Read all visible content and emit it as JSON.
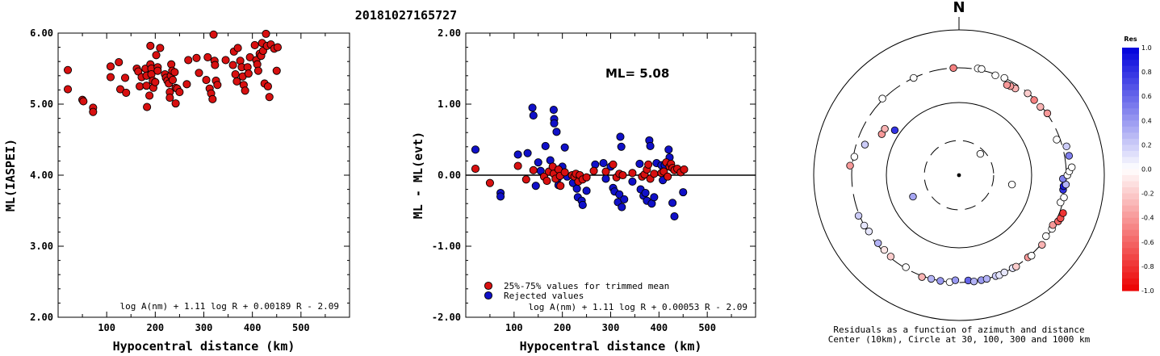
{
  "title": "20181027165727",
  "chart_data": [
    {
      "type": "scatter",
      "panel": "ml-vs-distance",
      "xlabel": "Hypocentral distance (km)",
      "ylabel": "ML(IASPEI)",
      "xlim": [
        0,
        600
      ],
      "ylim": [
        2.0,
        6.0
      ],
      "xticks": [
        "100",
        "200",
        "300",
        "400",
        "500"
      ],
      "yticks": [
        "2.00",
        "3.00",
        "4.00",
        "5.00",
        "6.00"
      ],
      "formula": "log A(nm) + 1.11 log R + 0.00189 R - 2.09",
      "color": "#d81010",
      "points": [
        [
          20,
          5.48
        ],
        [
          20,
          5.21
        ],
        [
          50,
          5.06
        ],
        [
          52,
          5.04
        ],
        [
          72,
          4.95
        ],
        [
          72,
          4.89
        ],
        [
          108,
          5.53
        ],
        [
          108,
          5.38
        ],
        [
          125,
          5.59
        ],
        [
          128,
          5.21
        ],
        [
          138,
          5.37
        ],
        [
          140,
          5.16
        ],
        [
          162,
          5.5
        ],
        [
          165,
          5.46
        ],
        [
          168,
          5.25
        ],
        [
          172,
          5.38
        ],
        [
          180,
          5.5
        ],
        [
          182,
          5.4
        ],
        [
          182,
          5.26
        ],
        [
          183,
          4.96
        ],
        [
          188,
          5.12
        ],
        [
          190,
          5.82
        ],
        [
          190,
          5.56
        ],
        [
          192,
          5.5
        ],
        [
          192,
          5.42
        ],
        [
          195,
          5.33
        ],
        [
          196,
          5.23
        ],
        [
          200,
          5.31
        ],
        [
          202,
          5.69
        ],
        [
          205,
          5.52
        ],
        [
          205,
          5.47
        ],
        [
          210,
          5.79
        ],
        [
          220,
          5.42
        ],
        [
          222,
          5.37
        ],
        [
          225,
          5.33
        ],
        [
          228,
          5.29
        ],
        [
          230,
          5.17
        ],
        [
          230,
          5.09
        ],
        [
          232,
          5.4
        ],
        [
          233,
          5.56
        ],
        [
          235,
          5.47
        ],
        [
          236,
          5.34
        ],
        [
          240,
          5.45
        ],
        [
          242,
          5.23
        ],
        [
          242,
          5.01
        ],
        [
          245,
          5.22
        ],
        [
          250,
          5.17
        ],
        [
          265,
          5.28
        ],
        [
          268,
          5.62
        ],
        [
          285,
          5.65
        ],
        [
          290,
          5.44
        ],
        [
          305,
          5.34
        ],
        [
          308,
          5.66
        ],
        [
          312,
          5.22
        ],
        [
          315,
          5.15
        ],
        [
          318,
          5.07
        ],
        [
          320,
          5.98
        ],
        [
          322,
          5.61
        ],
        [
          323,
          5.55
        ],
        [
          325,
          5.33
        ],
        [
          328,
          5.27
        ],
        [
          345,
          5.62
        ],
        [
          360,
          5.55
        ],
        [
          362,
          5.74
        ],
        [
          365,
          5.42
        ],
        [
          368,
          5.32
        ],
        [
          370,
          5.79
        ],
        [
          375,
          5.61
        ],
        [
          378,
          5.52
        ],
        [
          380,
          5.39
        ],
        [
          382,
          5.27
        ],
        [
          385,
          5.19
        ],
        [
          390,
          5.52
        ],
        [
          392,
          5.43
        ],
        [
          395,
          5.66
        ],
        [
          405,
          5.83
        ],
        [
          408,
          5.62
        ],
        [
          410,
          5.56
        ],
        [
          412,
          5.47
        ],
        [
          415,
          5.71
        ],
        [
          418,
          5.68
        ],
        [
          420,
          5.86
        ],
        [
          422,
          5.75
        ],
        [
          425,
          5.29
        ],
        [
          428,
          5.99
        ],
        [
          430,
          5.82
        ],
        [
          432,
          5.25
        ],
        [
          435,
          5.1
        ],
        [
          438,
          5.84
        ],
        [
          445,
          5.78
        ],
        [
          450,
          5.47
        ],
        [
          452,
          5.8
        ]
      ]
    },
    {
      "type": "scatter",
      "panel": "residual-vs-distance",
      "xlabel": "Hypocentral distance (km)",
      "ylabel": "ML - ML(evt)",
      "xlim": [
        0,
        600
      ],
      "ylim": [
        -2.0,
        2.0
      ],
      "xticks": [
        "100",
        "200",
        "300",
        "400",
        "500"
      ],
      "yticks": [
        "-2.00",
        "-1.00",
        "0.00",
        "1.00",
        "2.00"
      ],
      "ml_label": "ML=  5.08",
      "formula": "log A(nm) + 1.11 log R + 0.00053 R - 2.09",
      "legend": [
        {
          "label": "25%-75% values for trimmed mean",
          "color": "#d81010"
        },
        {
          "label": "Rejected values",
          "color": "#1010c8"
        }
      ],
      "series": [
        {
          "name": "25%-75% values for trimmed mean",
          "color": "#d81010",
          "points": [
            [
              20,
              0.09
            ],
            [
              50,
              -0.11
            ],
            [
              108,
              0.13
            ],
            [
              125,
              -0.06
            ],
            [
              140,
              0.07
            ],
            [
              162,
              -0.02
            ],
            [
              168,
              -0.08
            ],
            [
              172,
              0.05
            ],
            [
              180,
              0.12
            ],
            [
              182,
              0.02
            ],
            [
              186,
              -0.05
            ],
            [
              192,
              0.08
            ],
            [
              195,
              -0.01
            ],
            [
              196,
              -0.15
            ],
            [
              205,
              0.04
            ],
            [
              220,
              0.0
            ],
            [
              225,
              -0.02
            ],
            [
              228,
              0.02
            ],
            [
              233,
              -0.09
            ],
            [
              236,
              0.0
            ],
            [
              242,
              -0.06
            ],
            [
              250,
              -0.03
            ],
            [
              265,
              0.06
            ],
            [
              290,
              0.05
            ],
            [
              305,
              0.15
            ],
            [
              312,
              -0.03
            ],
            [
              318,
              0.02
            ],
            [
              325,
              0.0
            ],
            [
              345,
              0.03
            ],
            [
              365,
              -0.02
            ],
            [
              370,
              0.01
            ],
            [
              375,
              0.08
            ],
            [
              378,
              0.15
            ],
            [
              382,
              -0.05
            ],
            [
              390,
              0.02
            ],
            [
              405,
              0.03
            ],
            [
              410,
              0.05
            ],
            [
              415,
              0.18
            ],
            [
              418,
              -0.02
            ],
            [
              422,
              0.12
            ],
            [
              425,
              0.16
            ],
            [
              428,
              0.1
            ],
            [
              432,
              0.07
            ],
            [
              438,
              0.09
            ],
            [
              445,
              0.04
            ],
            [
              452,
              0.08
            ]
          ]
        },
        {
          "name": "Rejected values",
          "color": "#1010c8",
          "points": [
            [
              20,
              0.36
            ],
            [
              72,
              -0.25
            ],
            [
              72,
              -0.3
            ],
            [
              108,
              0.29
            ],
            [
              128,
              0.31
            ],
            [
              138,
              0.95
            ],
            [
              140,
              0.84
            ],
            [
              145,
              -0.15
            ],
            [
              150,
              0.18
            ],
            [
              155,
              0.06
            ],
            [
              165,
              0.41
            ],
            [
              175,
              0.21
            ],
            [
              178,
              0.05
            ],
            [
              182,
              0.92
            ],
            [
              183,
              0.79
            ],
            [
              183,
              0.73
            ],
            [
              188,
              0.61
            ],
            [
              190,
              -0.05
            ],
            [
              192,
              -0.14
            ],
            [
              200,
              0.12
            ],
            [
              205,
              0.39
            ],
            [
              210,
              -0.02
            ],
            [
              222,
              -0.11
            ],
            [
              230,
              -0.19
            ],
            [
              232,
              -0.31
            ],
            [
              240,
              -0.36
            ],
            [
              242,
              -0.42
            ],
            [
              250,
              -0.22
            ],
            [
              268,
              0.15
            ],
            [
              285,
              0.17
            ],
            [
              290,
              -0.05
            ],
            [
              300,
              0.12
            ],
            [
              305,
              -0.18
            ],
            [
              308,
              -0.23
            ],
            [
              315,
              -0.38
            ],
            [
              318,
              -0.27
            ],
            [
              320,
              0.54
            ],
            [
              322,
              0.4
            ],
            [
              323,
              -0.45
            ],
            [
              328,
              -0.34
            ],
            [
              345,
              -0.09
            ],
            [
              360,
              0.16
            ],
            [
              362,
              -0.2
            ],
            [
              368,
              -0.29
            ],
            [
              372,
              -0.25
            ],
            [
              375,
              -0.36
            ],
            [
              380,
              0.49
            ],
            [
              382,
              0.41
            ],
            [
              385,
              -0.4
            ],
            [
              390,
              -0.31
            ],
            [
              395,
              0.17
            ],
            [
              405,
              0.14
            ],
            [
              408,
              -0.07
            ],
            [
              412,
              0.14
            ],
            [
              420,
              0.36
            ],
            [
              422,
              0.25
            ],
            [
              428,
              -0.39
            ],
            [
              432,
              -0.58
            ],
            [
              450,
              -0.24
            ]
          ]
        }
      ]
    },
    {
      "type": "polar-scatter",
      "panel": "azimuth-distance-residuals",
      "north_label": "N",
      "caption_line1": "Residuals as a function of azimuth and distance",
      "caption_line2": "Center (10km), Circle at 30, 100, 300 and 1000 km",
      "rings_km": [
        30,
        100,
        300,
        1000
      ],
      "colorbar": {
        "title": "Res",
        "ticks": [
          "1.0",
          "0.8",
          "0.6",
          "0.4",
          "0.2",
          "0.0",
          "-0.2",
          "-0.4",
          "-0.6",
          "-0.8",
          "-1.0"
        ],
        "min": -1.0,
        "max": 1.0
      },
      "points_note": "[azimuth_deg, distance_km, residual]",
      "points": [
        [
          45,
          26,
          0.0
        ],
        [
          -115,
          50,
          0.35
        ],
        [
          100,
          55,
          0.0
        ],
        [
          -55,
          120,
          0.8
        ],
        [
          -3,
          300,
          -0.5
        ],
        [
          10,
          310,
          0.0
        ],
        [
          12,
          312,
          0.0
        ],
        [
          20,
          290,
          0.0
        ],
        [
          25,
          300,
          0.0
        ],
        [
          -25,
          300,
          0.0
        ],
        [
          -45,
          310,
          0.0
        ],
        [
          -62,
          160,
          -0.4
        ],
        [
          -58,
          160,
          -0.3
        ],
        [
          -72,
          230,
          0.2
        ],
        [
          -85,
          320,
          -0.4
        ],
        [
          -80,
          290,
          0.0
        ],
        [
          -112,
          310,
          0.2
        ],
        [
          -118,
          300,
          0.1
        ],
        [
          -122,
          290,
          0.1
        ],
        [
          -130,
          285,
          0.3
        ],
        [
          -135,
          285,
          -0.1
        ],
        [
          -140,
          290,
          -0.2
        ],
        [
          -150,
          290,
          0.0
        ],
        [
          -160,
          310,
          -0.3
        ],
        [
          -165,
          300,
          0.3
        ],
        [
          -170,
          300,
          0.4
        ],
        [
          -175,
          300,
          0.0
        ],
        [
          -178,
          280,
          0.4
        ],
        [
          175,
          285,
          0.6
        ],
        [
          172,
          300,
          0.3
        ],
        [
          168,
          300,
          0.4
        ],
        [
          165,
          300,
          0.3
        ],
        [
          160,
          300,
          0.2
        ],
        [
          158,
          305,
          0.1
        ],
        [
          155,
          300,
          0.1
        ],
        [
          150,
          300,
          0.1
        ],
        [
          148,
          305,
          -0.2
        ],
        [
          140,
          300,
          -0.4
        ],
        [
          138,
          310,
          0.0
        ],
        [
          130,
          310,
          -0.3
        ],
        [
          125,
          290,
          0.0
        ],
        [
          120,
          300,
          0.0
        ],
        [
          118,
          290,
          -0.4
        ],
        [
          115,
          320,
          -0.6
        ],
        [
          113,
          330,
          -0.7
        ],
        [
          110,
          335,
          -0.8
        ],
        [
          105,
          280,
          0.0
        ],
        [
          102,
          300,
          0.0
        ],
        [
          98,
          280,
          0.8
        ],
        [
          96,
          280,
          0.9
        ],
        [
          95,
          300,
          0.3
        ],
        [
          92,
          270,
          0.5
        ],
        [
          90,
          310,
          0.0
        ],
        [
          88,
          330,
          0.0
        ],
        [
          86,
          360,
          0.0
        ],
        [
          80,
          345,
          0.5
        ],
        [
          75,
          340,
          0.2
        ],
        [
          70,
          270,
          0.0
        ],
        [
          55,
          305,
          -0.4
        ],
        [
          50,
          290,
          -0.3
        ],
        [
          45,
          290,
          -0.5
        ],
        [
          40,
          295,
          -0.2
        ],
        [
          33,
          265,
          -0.3
        ],
        [
          30,
          260,
          -0.4
        ],
        [
          28,
          255,
          -0.4
        ]
      ]
    }
  ]
}
